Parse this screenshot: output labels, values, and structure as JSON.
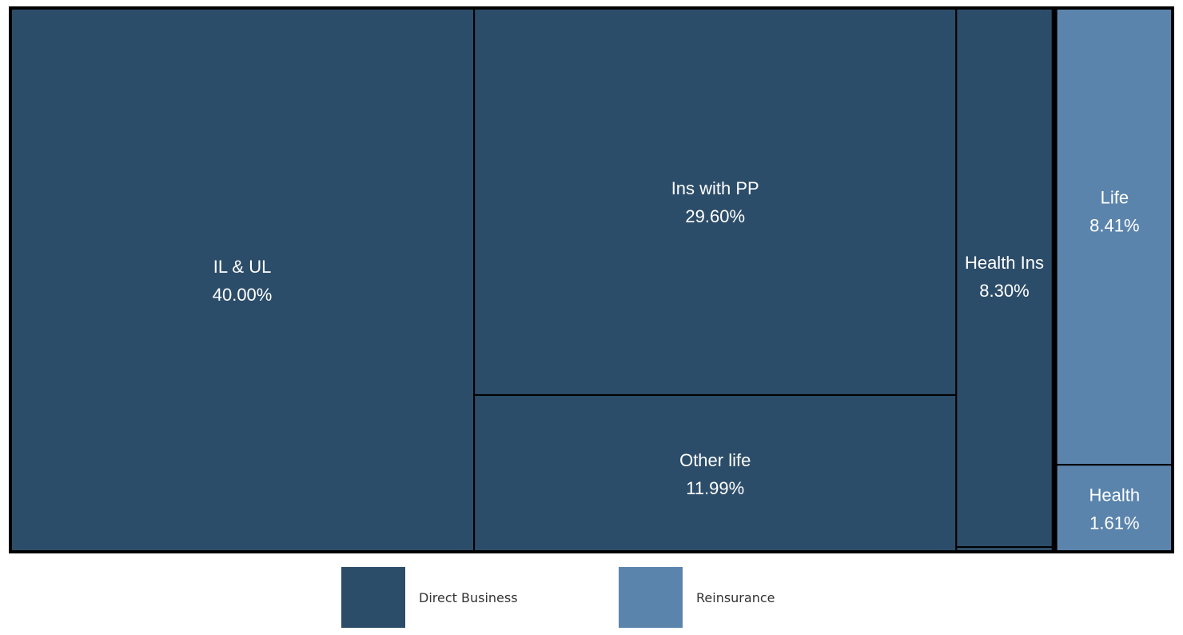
{
  "chart_data": {
    "type": "treemap",
    "unit": "%",
    "colors": {
      "Direct Business": "#2c4d69",
      "Reinsurance": "#5b84ad"
    },
    "groups": [
      {
        "name": "Direct Business",
        "items": [
          {
            "label": "IL & UL",
            "value": 40.0,
            "display": "40.00%"
          },
          {
            "label": "Ins with PP",
            "value": 29.6,
            "display": "29.60%"
          },
          {
            "label": "Other life",
            "value": 11.99,
            "display": "11.99%"
          },
          {
            "label": "Health Ins",
            "value": 8.3,
            "display": "8.30%"
          }
        ]
      },
      {
        "name": "Reinsurance",
        "items": [
          {
            "label": "Life",
            "value": 8.41,
            "display": "8.41%"
          },
          {
            "label": "Health",
            "value": 1.61,
            "display": "1.61%"
          }
        ]
      }
    ],
    "legend": [
      {
        "label": "Direct Business",
        "color": "#2c4d69"
      },
      {
        "label": "Reinsurance",
        "color": "#5b84ad"
      }
    ],
    "legend_position": "bottom"
  }
}
